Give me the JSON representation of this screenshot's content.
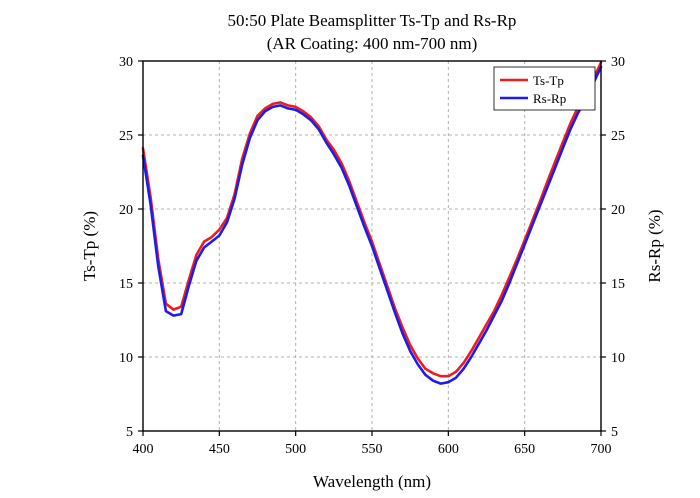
{
  "chart_data": {
    "type": "line",
    "title": "50:50 Plate Beamsplitter Ts-Tp and Rs-Rp",
    "subtitle": "(AR Coating: 400 nm-700 nm)",
    "xlabel": "Wavelength (nm)",
    "ylabel_left": "Ts-Tp (%)",
    "ylabel_right": "Rs-Rp (%)",
    "xlim": [
      400,
      700
    ],
    "ylim": [
      5,
      30
    ],
    "x_ticks": [
      "400",
      "450",
      "500",
      "550",
      "600",
      "650",
      "700"
    ],
    "y_ticks": [
      "5",
      "10",
      "15",
      "20",
      "25",
      "30"
    ],
    "grid": true,
    "legend_position": "top-right",
    "series": [
      {
        "name": "Ts-Tp",
        "color": "#ee1c1c",
        "x": [
          400,
          405,
          410,
          415,
          420,
          425,
          430,
          435,
          440,
          445,
          450,
          455,
          460,
          465,
          470,
          475,
          480,
          485,
          490,
          495,
          500,
          505,
          510,
          515,
          520,
          525,
          530,
          535,
          540,
          545,
          550,
          555,
          560,
          565,
          570,
          575,
          580,
          585,
          590,
          595,
          600,
          605,
          610,
          615,
          620,
          625,
          630,
          635,
          640,
          645,
          650,
          655,
          660,
          665,
          670,
          675,
          680,
          685,
          690,
          695,
          700
        ],
        "values": [
          24.1,
          20.8,
          16.6,
          13.6,
          13.2,
          13.4,
          15.2,
          16.9,
          17.8,
          18.1,
          18.6,
          19.4,
          21.0,
          23.4,
          25.1,
          26.3,
          26.8,
          27.1,
          27.2,
          27.0,
          26.9,
          26.6,
          26.2,
          25.6,
          24.7,
          24.0,
          23.1,
          21.9,
          20.5,
          19.1,
          17.8,
          16.3,
          14.8,
          13.3,
          12.0,
          10.8,
          9.9,
          9.2,
          8.9,
          8.7,
          8.7,
          9.0,
          9.6,
          10.4,
          11.3,
          12.2,
          13.1,
          14.2,
          15.4,
          16.6,
          17.9,
          19.2,
          20.5,
          21.9,
          23.2,
          24.5,
          25.8,
          26.9,
          27.8,
          28.8,
          29.9
        ]
      },
      {
        "name": "Rs-Rp",
        "color": "#1c1cee",
        "x": [
          400,
          405,
          410,
          415,
          420,
          425,
          430,
          435,
          440,
          445,
          450,
          455,
          460,
          465,
          470,
          475,
          480,
          485,
          490,
          495,
          500,
          505,
          510,
          515,
          520,
          525,
          530,
          535,
          540,
          545,
          550,
          555,
          560,
          565,
          570,
          575,
          580,
          585,
          590,
          595,
          600,
          605,
          610,
          615,
          620,
          625,
          630,
          635,
          640,
          645,
          650,
          655,
          660,
          665,
          670,
          675,
          680,
          685,
          690,
          695,
          700
        ],
        "values": [
          23.6,
          20.3,
          16.1,
          13.1,
          12.8,
          12.9,
          14.8,
          16.5,
          17.4,
          17.8,
          18.2,
          19.1,
          20.7,
          23.0,
          24.8,
          26.0,
          26.6,
          26.9,
          27.0,
          26.8,
          26.7,
          26.4,
          26.0,
          25.4,
          24.5,
          23.7,
          22.8,
          21.6,
          20.2,
          18.8,
          17.5,
          16.0,
          14.5,
          13.0,
          11.6,
          10.4,
          9.5,
          8.8,
          8.4,
          8.2,
          8.3,
          8.6,
          9.2,
          10.0,
          10.9,
          11.8,
          12.8,
          13.8,
          15.0,
          16.3,
          17.6,
          18.9,
          20.2,
          21.5,
          22.8,
          24.1,
          25.4,
          26.5,
          27.4,
          28.5,
          29.6
        ]
      }
    ]
  }
}
